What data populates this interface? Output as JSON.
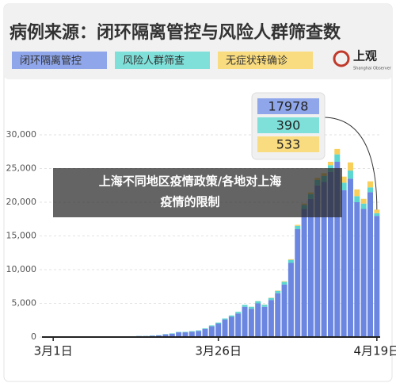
{
  "chart_data": {
    "type": "bar",
    "stacked": true,
    "title": "病例来源：闭环隔离管控与风险人群筛查数",
    "logo": {
      "name": "上观",
      "subtitle": "Shanghai Observer"
    },
    "banner": [
      "上海不同地区疫情政策/各地对上海",
      "疫情的限制"
    ],
    "categories": [
      "3月1日",
      null,
      null,
      null,
      null,
      null,
      null,
      null,
      null,
      null,
      null,
      null,
      null,
      null,
      null,
      null,
      null,
      null,
      null,
      null,
      null,
      null,
      null,
      null,
      null,
      "3月26日",
      null,
      null,
      null,
      null,
      null,
      null,
      null,
      null,
      null,
      null,
      null,
      null,
      null,
      null,
      null,
      null,
      null,
      null,
      null,
      null,
      null,
      null,
      null,
      "4月19日"
    ],
    "series": [
      {
        "name": "闭环隔离管控",
        "color": "#6b86e0",
        "values": [
          2,
          6,
          10,
          10,
          20,
          30,
          40,
          40,
          50,
          60,
          60,
          80,
          100,
          150,
          150,
          200,
          250,
          400,
          500,
          700,
          700,
          800,
          900,
          1200,
          1600,
          2000,
          2600,
          3000,
          3500,
          4500,
          4200,
          5000,
          4500,
          5500,
          6500,
          7800,
          11000,
          16000,
          19000,
          20500,
          22500,
          23000,
          24500,
          26000,
          21800,
          23500,
          20000,
          19000,
          21500,
          17978
        ]
      },
      {
        "name": "风险人群筛查",
        "color": "#5cd6d0",
        "values": [
          0,
          0,
          1,
          2,
          3,
          5,
          5,
          6,
          8,
          10,
          12,
          15,
          20,
          20,
          25,
          30,
          30,
          40,
          50,
          60,
          70,
          80,
          90,
          100,
          120,
          150,
          160,
          200,
          230,
          260,
          300,
          320,
          280,
          300,
          350,
          400,
          450,
          500,
          600,
          700,
          800,
          900,
          1000,
          1100,
          1100,
          1200,
          900,
          800,
          700,
          390
        ]
      },
      {
        "name": "无症状转确诊",
        "color": "#f7cf5a",
        "values": [
          0,
          0,
          0,
          0,
          0,
          0,
          0,
          0,
          0,
          0,
          0,
          0,
          0,
          0,
          0,
          0,
          0,
          0,
          0,
          0,
          0,
          0,
          0,
          0,
          0,
          0,
          0,
          0,
          0,
          0,
          10,
          20,
          30,
          40,
          60,
          80,
          100,
          150,
          200,
          250,
          300,
          400,
          500,
          800,
          900,
          1200,
          1000,
          700,
          900,
          533
        ]
      }
    ],
    "ylim": [
      0,
      30000
    ],
    "yticks": [
      0,
      {
        "value": 5000,
        "label": "5,000"
      },
      {
        "value": 10000,
        "label": "10,000"
      },
      {
        "value": 15000,
        "label": "15,000"
      },
      {
        "value": 20000,
        "label": "20,000"
      },
      {
        "value": 25000,
        "label": "25,000"
      },
      {
        "value": 30000,
        "label": "30,000"
      }
    ],
    "grid": true
  }
}
